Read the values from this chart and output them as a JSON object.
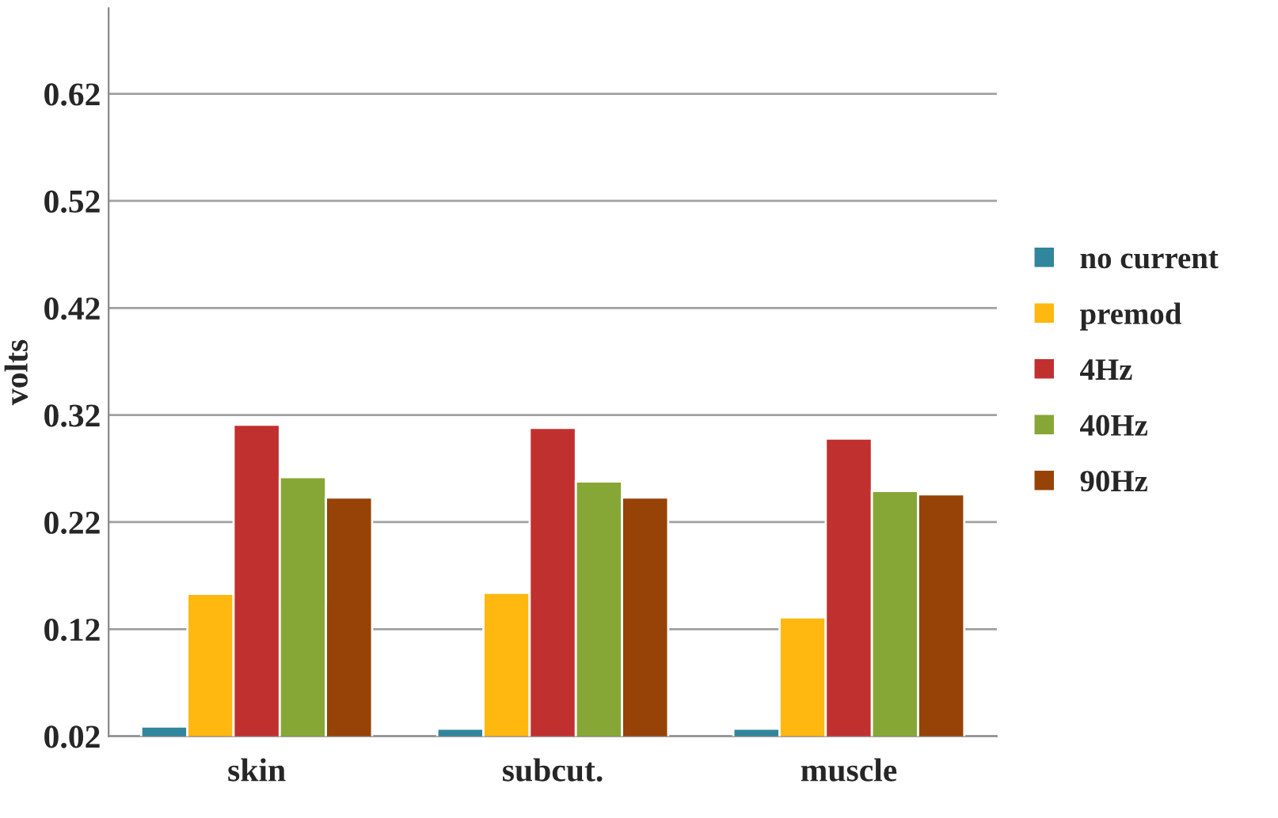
{
  "chart_data": {
    "type": "bar",
    "ylabel": "volts",
    "categories": [
      "skin",
      "subcut.",
      "muscle"
    ],
    "series": [
      {
        "name": "no current",
        "color": "#31859c",
        "values": [
          0.029,
          0.027,
          0.027
        ]
      },
      {
        "name": "premod",
        "color": "#ffb80f",
        "values": [
          0.153,
          0.154,
          0.131
        ]
      },
      {
        "name": "4Hz",
        "color": "#c0302f",
        "values": [
          0.311,
          0.308,
          0.298
        ]
      },
      {
        "name": "40Hz",
        "color": "#86a736",
        "values": [
          0.262,
          0.258,
          0.249
        ]
      },
      {
        "name": "90Hz",
        "color": "#974206",
        "values": [
          0.243,
          0.243,
          0.246
        ]
      }
    ],
    "ylim": [
      0.02,
      0.7
    ],
    "yticks": [
      0.02,
      0.12,
      0.22,
      0.32,
      0.42,
      0.52,
      0.62
    ],
    "grid": "y",
    "legend": "right"
  }
}
